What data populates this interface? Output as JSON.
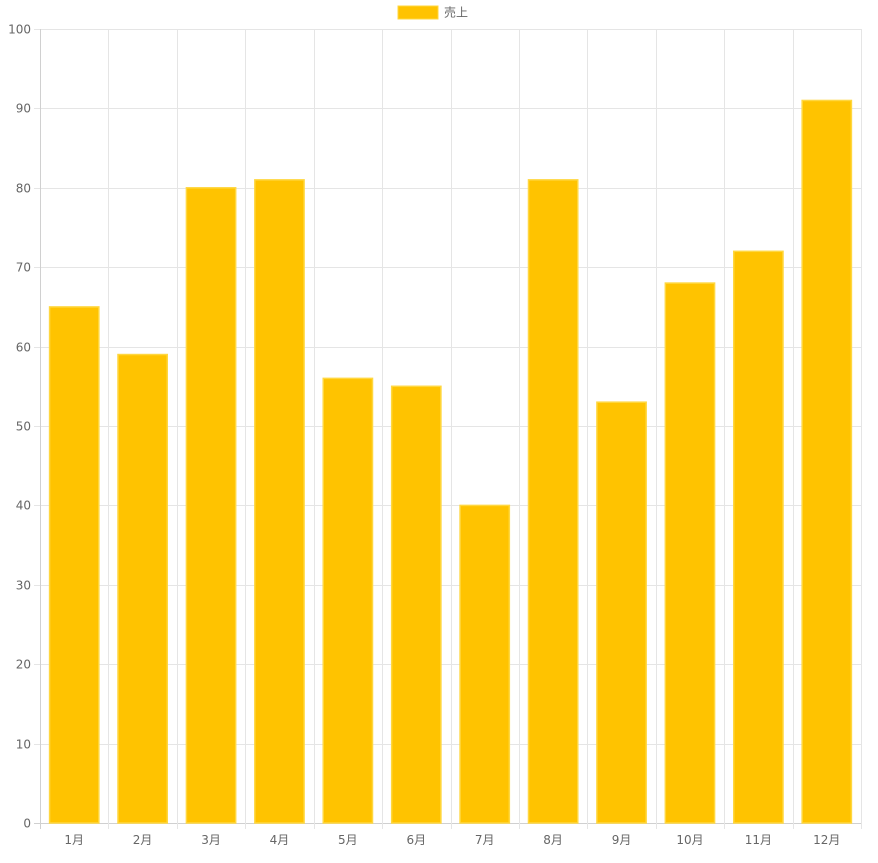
{
  "chart_data": {
    "type": "bar",
    "title": "",
    "xlabel": "",
    "ylabel": "",
    "categories": [
      "1月",
      "2月",
      "3月",
      "4月",
      "5月",
      "6月",
      "7月",
      "8月",
      "9月",
      "10月",
      "11月",
      "12月"
    ],
    "series": [
      {
        "name": "売上",
        "values": [
          65,
          59,
          80,
          81,
          56,
          55,
          40,
          81,
          53,
          68,
          72,
          91
        ]
      }
    ],
    "ylim": [
      0,
      100
    ],
    "yticks": [
      0,
      10,
      20,
      30,
      40,
      50,
      60,
      70,
      80,
      90,
      100
    ],
    "grid": true,
    "legend_position": "top-center"
  },
  "colors": {
    "bar_fill": "#ffc300",
    "bar_border": "#ffd740",
    "grid": "#e5e5e5",
    "axis": "#d0d0d0",
    "text": "#666666"
  }
}
